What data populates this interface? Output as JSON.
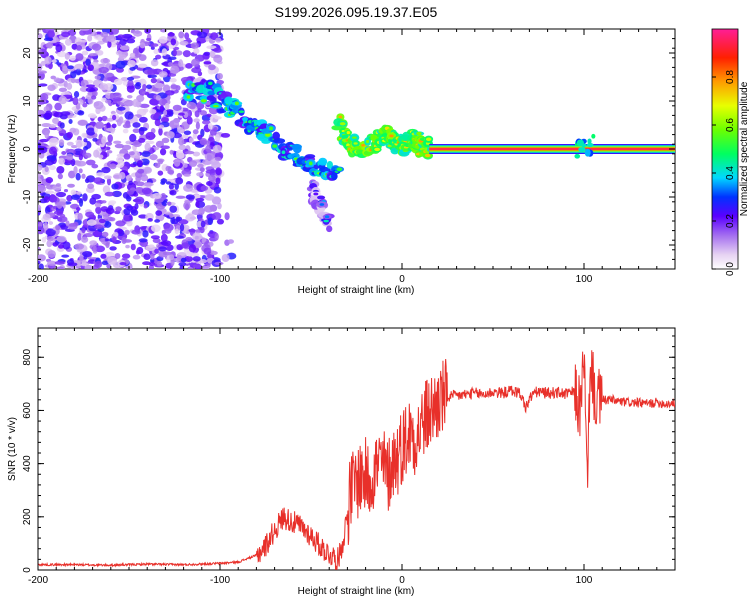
{
  "chart_data": [
    {
      "type": "heatmap",
      "title": "S199.2026.095.19.37.E05",
      "xlabel": "Height of straight line (km)",
      "ylabel": "Frequency (Hz)",
      "xlim": [
        -200,
        150
      ],
      "ylim": [
        -25,
        25
      ],
      "x_ticks": [
        -200,
        -100,
        0,
        100
      ],
      "y_ticks": [
        -20,
        -10,
        0,
        10,
        20
      ],
      "colorbar": {
        "label": "Normalized spectral amplitude",
        "range": [
          0,
          1
        ],
        "ticks": [
          0.0,
          0.2,
          0.4,
          0.6,
          0.8
        ]
      },
      "features": [
        {
          "name": "noise-region",
          "x_range": [
            -200,
            -100
          ],
          "amplitude": 0.05
        },
        {
          "name": "descending-track",
          "points": [
            [
              -118,
              12
            ],
            [
              -105,
              12
            ],
            [
              -95,
              9
            ],
            [
              -85,
              6
            ],
            [
              -75,
              4
            ],
            [
              -65,
              0
            ],
            [
              -55,
              -2
            ],
            [
              -45,
              -4
            ],
            [
              -35,
              -5
            ]
          ],
          "amplitude": 0.25
        },
        {
          "name": "branch-track",
          "points": [
            [
              -50,
              -8
            ],
            [
              -45,
              -12
            ],
            [
              -40,
              -16
            ]
          ],
          "amplitude": 0.08
        },
        {
          "name": "onset-cluster",
          "points": [
            [
              -35,
              5
            ],
            [
              -30,
              2
            ],
            [
              -25,
              0
            ],
            [
              -15,
              1
            ],
            [
              -10,
              3
            ],
            [
              -5,
              2
            ],
            [
              0,
              1
            ],
            [
              5,
              2
            ],
            [
              10,
              1
            ],
            [
              15,
              0
            ]
          ],
          "amplitude": 0.45
        },
        {
          "name": "constant-line",
          "x_range": [
            15,
            150
          ],
          "frequency": 0,
          "amplitude": 0.95
        },
        {
          "name": "interruption-100km",
          "x_range": [
            96,
            106
          ],
          "amplitude": 0.3
        }
      ]
    },
    {
      "type": "line",
      "xlabel": "Height of straight line (km)",
      "ylabel": "SNR (10 * v/v)",
      "xlim": [
        -200,
        150
      ],
      "ylim": [
        0,
        910
      ],
      "x_ticks": [
        -200,
        -100,
        0,
        100
      ],
      "y_ticks": [
        0,
        200,
        400,
        600,
        800
      ],
      "color": "#e8302a",
      "series": [
        {
          "name": "SNR",
          "x": [
            -200,
            -180,
            -160,
            -140,
            -120,
            -100,
            -90,
            -80,
            -75,
            -70,
            -65,
            -60,
            -55,
            -50,
            -45,
            -40,
            -35,
            -32,
            -30,
            -28,
            -25,
            -22,
            -20,
            -18,
            -15,
            -12,
            -10,
            -8,
            -5,
            -2,
            0,
            3,
            5,
            8,
            10,
            12,
            15,
            18,
            20,
            22,
            25,
            30,
            35,
            40,
            45,
            50,
            55,
            60,
            65,
            68,
            70,
            72,
            75,
            80,
            85,
            90,
            95,
            98,
            100,
            101,
            102,
            103,
            104,
            105,
            106,
            108,
            110,
            115,
            120,
            125,
            130,
            135,
            140,
            145,
            150
          ],
          "values": [
            20,
            20,
            18,
            22,
            20,
            25,
            30,
            55,
            90,
            150,
            200,
            180,
            160,
            130,
            90,
            60,
            40,
            120,
            220,
            300,
            330,
            360,
            350,
            340,
            380,
            400,
            390,
            350,
            410,
            430,
            470,
            500,
            520,
            500,
            530,
            560,
            590,
            610,
            630,
            645,
            650,
            655,
            660,
            665,
            660,
            670,
            665,
            675,
            665,
            610,
            640,
            665,
            670,
            665,
            668,
            662,
            670,
            600,
            820,
            500,
            300,
            660,
            780,
            700,
            650,
            640,
            638,
            640,
            632,
            630,
            628,
            625,
            630,
            625,
            628
          ]
        }
      ]
    }
  ]
}
